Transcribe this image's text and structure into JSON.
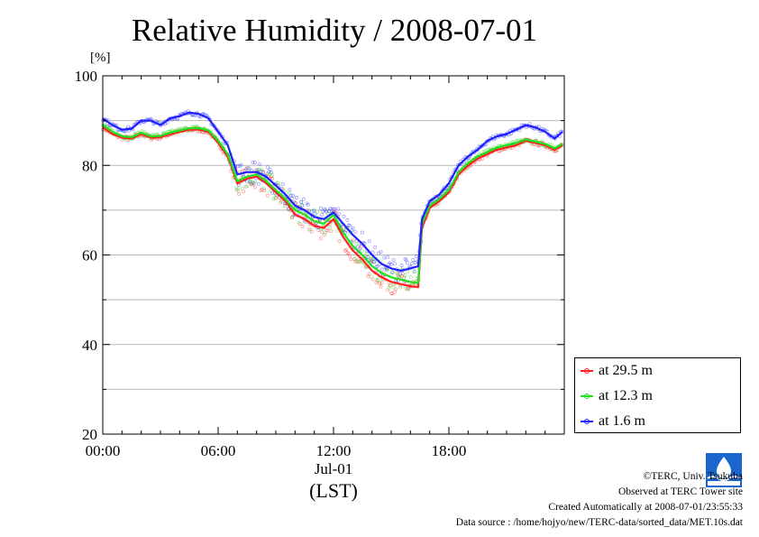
{
  "title": "Relative Humidity / 2008-07-01",
  "y_unit": "[%]",
  "x_date_label": "Jul-01",
  "x_tz_label": "(LST)",
  "legend": [
    {
      "label": "at 29.5 m",
      "color": "#ff2020"
    },
    {
      "label": "at 12.3 m",
      "color": "#20e020"
    },
    {
      "label": "at 1.6 m",
      "color": "#2020ff"
    }
  ],
  "footer": {
    "copyright": "©TERC, Univ. Tsukuba",
    "observed": "Observed at TERC Tower site",
    "created": "Created Automatically at 2008-07-01/23:55:33",
    "source": "Data source : /home/hojyo/new/TERC-data/sorted_data/MET.10s.dat"
  },
  "logo_icon": "terc-logo-icon",
  "chart_data": {
    "type": "line",
    "title": "Relative Humidity / 2008-07-01",
    "ylabel": "[%]",
    "xlabel": "(LST)",
    "ylim": [
      20,
      100
    ],
    "xlim": [
      0,
      24
    ],
    "yticks": [
      20,
      40,
      60,
      80,
      100
    ],
    "yticks_minor": [
      30,
      50,
      70,
      90
    ],
    "xticks": [
      0,
      6,
      12,
      18
    ],
    "xtick_labels": [
      "00:00",
      "06:00",
      "12:00",
      "18:00"
    ],
    "grid": true,
    "legend_position": "right-bottom",
    "series": [
      {
        "name": "at 29.5 m",
        "color": "#ff2020",
        "x": [
          0,
          0.5,
          1,
          1.5,
          2,
          2.5,
          3,
          3.5,
          4,
          4.5,
          5,
          5.5,
          6,
          6.5,
          7,
          7.5,
          8,
          8.5,
          9,
          9.5,
          10,
          10.5,
          11,
          11.5,
          12,
          12.5,
          13,
          13.5,
          14,
          14.5,
          15,
          15.5,
          16,
          16.4,
          16.6,
          17,
          17.5,
          18,
          18.5,
          19,
          19.5,
          20,
          20.5,
          21,
          21.5,
          22,
          22.5,
          23,
          23.5,
          23.9
        ],
        "y": [
          88.5,
          87,
          86.2,
          86,
          87,
          86.2,
          86.3,
          87,
          87.5,
          88,
          88,
          87.5,
          85,
          82,
          76,
          77,
          77.5,
          76,
          74,
          72,
          69,
          68,
          66.5,
          66,
          68,
          64,
          61,
          59,
          56.5,
          55,
          54,
          53.5,
          53,
          52.8,
          66,
          70.5,
          72,
          74,
          78,
          80,
          81.5,
          82.5,
          83.5,
          84,
          84.5,
          85.5,
          85,
          84.5,
          83.5,
          84.5
        ]
      },
      {
        "name": "at 12.3 m",
        "color": "#20e020",
        "x": [
          0,
          0.5,
          1,
          1.5,
          2,
          2.5,
          3,
          3.5,
          4,
          4.5,
          5,
          5.5,
          6,
          6.5,
          7,
          7.5,
          8,
          8.5,
          9,
          9.5,
          10,
          10.5,
          11,
          11.5,
          12,
          12.5,
          13,
          13.5,
          14,
          14.5,
          15,
          15.5,
          16,
          16.4,
          16.6,
          17,
          17.5,
          18,
          18.5,
          19,
          19.5,
          20,
          20.5,
          21,
          21.5,
          22,
          22.5,
          23,
          23.5,
          23.9
        ],
        "y": [
          89,
          87.5,
          86.5,
          86.3,
          87.3,
          86.5,
          86.6,
          87.3,
          87.8,
          88.3,
          88.3,
          87.8,
          85.5,
          82.5,
          76.5,
          77.5,
          78,
          76.5,
          74.5,
          72.5,
          70,
          69,
          67.5,
          67,
          69,
          65,
          62,
          60,
          57.5,
          56,
          55,
          54.5,
          54,
          53.8,
          67,
          71,
          72.5,
          74.5,
          78.5,
          80.5,
          82,
          83,
          84,
          84.5,
          85,
          85.8,
          85.3,
          84.8,
          83.8,
          84.8
        ]
      },
      {
        "name": "at 1.6 m",
        "color": "#2020ff",
        "x": [
          0,
          0.5,
          1,
          1.5,
          2,
          2.5,
          3,
          3.5,
          4,
          4.5,
          5,
          5.5,
          6,
          6.5,
          7,
          7.5,
          8,
          8.5,
          9,
          9.5,
          10,
          10.5,
          11,
          11.5,
          12,
          12.5,
          13,
          13.5,
          14,
          14.5,
          15,
          15.5,
          16,
          16.4,
          16.6,
          17,
          17.5,
          18,
          18.5,
          19,
          19.5,
          20,
          20.5,
          21,
          21.5,
          22,
          22.5,
          23,
          23.5,
          23.9
        ],
        "y": [
          90.5,
          89,
          88,
          88.2,
          90,
          90,
          89,
          90.5,
          91,
          91.8,
          91.5,
          90.5,
          87.5,
          84.5,
          78,
          78.5,
          78.5,
          77.5,
          75.5,
          73.5,
          71,
          70,
          68.5,
          68,
          69.5,
          67,
          64.5,
          62.5,
          60,
          58,
          57,
          56.5,
          57,
          57.5,
          68,
          72,
          73.5,
          76,
          80,
          82,
          83.5,
          85.5,
          86.5,
          87,
          88,
          89,
          88.5,
          87.5,
          86,
          87.5
        ]
      }
    ]
  }
}
